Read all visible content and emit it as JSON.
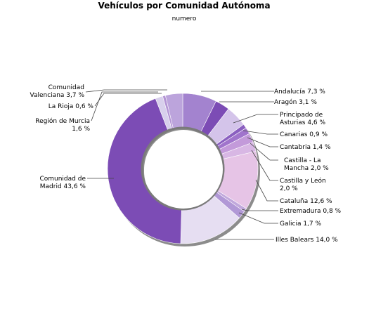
{
  "chart_data": {
    "type": "pie",
    "title": "Vehículos por Comunidad Autónoma",
    "subtitle": "numero",
    "slices": [
      {
        "label": [
          "Andalucía 7,3 %"
        ],
        "value": 7.3,
        "color": "#a383cf"
      },
      {
        "label": [
          "Aragón 3,1 %"
        ],
        "value": 3.1,
        "color": "#7c4cb5"
      },
      {
        "label": [
          "Principado de",
          "Asturias 4,6 %"
        ],
        "value": 4.6,
        "color": "#d4c4ea"
      },
      {
        "label": [
          "Canarias 0,9 %"
        ],
        "value": 0.9,
        "color": "#8a5fc0"
      },
      {
        "label": [
          "Cantabria 1,4 %"
        ],
        "value": 1.4,
        "color": "#a074cc"
      },
      {
        "label": [
          "Castilla - La",
          "Mancha 2,0 %"
        ],
        "value": 2.0,
        "color": "#c39ada"
      },
      {
        "label": [
          "Castilla y León",
          "2,0 %"
        ],
        "value": 2.0,
        "color": "#d8b7e4"
      },
      {
        "label": [
          "Cataluña 12,6 %"
        ],
        "value": 12.6,
        "color": "#e6c4e6"
      },
      {
        "label": [
          "Extremadura 0,8 %"
        ],
        "value": 0.8,
        "color": "#c1a8dc"
      },
      {
        "label": [
          "Galicia 1,7 %"
        ],
        "value": 1.7,
        "color": "#b198d6"
      },
      {
        "label": [
          "Illes Balears 14,0 %"
        ],
        "value": 14.0,
        "color": "#e6def2"
      },
      {
        "label": [
          "Comunidad de",
          "Madrid 43,6 %"
        ],
        "value": 43.6,
        "color": "#7c4cb5"
      },
      {
        "label": [
          "Región de Murcia",
          "1,6 %"
        ],
        "value": 1.6,
        "color": "#d8d0ec"
      },
      {
        "label": [
          "La Rioja 0,6 %"
        ],
        "value": 0.6,
        "color": "#b394d4"
      },
      {
        "label": [
          "Comunidad",
          "Valenciana 3,7 %"
        ],
        "value": 3.7,
        "color": "#bca4dc"
      }
    ]
  }
}
